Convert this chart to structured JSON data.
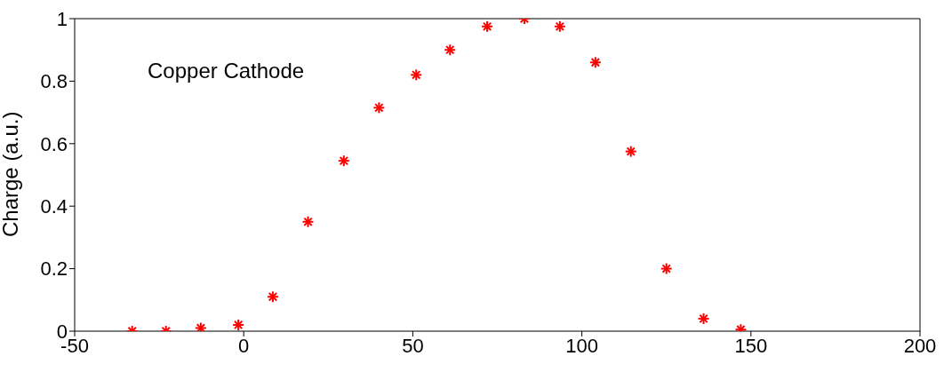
{
  "chart_data": {
    "type": "scatter",
    "ylabel": "Charge (a.u.)",
    "annotations": [
      "Copper Cathode"
    ],
    "x": [
      -33,
      -23,
      -12.7,
      -1.6,
      8.6,
      19,
      29.6,
      40,
      51,
      61,
      72,
      83,
      93.5,
      104,
      114.5,
      125,
      136,
      147
    ],
    "series": [
      {
        "color": "#ff0000",
        "values": [
          0,
          0,
          0.01,
          0.02,
          0.11,
          0.35,
          0.545,
          0.715,
          0.82,
          0.9,
          0.975,
          1.0,
          0.975,
          0.86,
          0.575,
          0.2,
          0.04,
          0.005
        ]
      }
    ],
    "xlim": [
      -50,
      200
    ],
    "xticks": [
      -50,
      0,
      50,
      100,
      150,
      200
    ],
    "ylim": [
      0,
      1
    ],
    "yticks": [
      0,
      0.2,
      0.4,
      0.6,
      0.8,
      1
    ],
    "marker": "cross",
    "grid": false,
    "legend": false
  }
}
